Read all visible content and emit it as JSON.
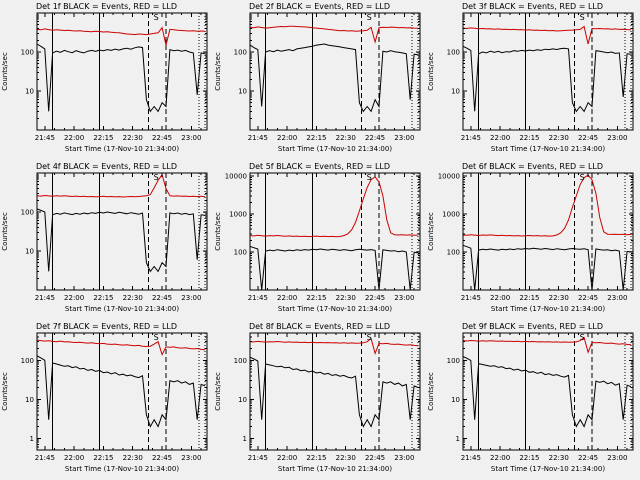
{
  "window": {
    "bg": "#f0f0f0"
  },
  "colors": {
    "events": "#000000",
    "lld": "#cc0000",
    "frame": "#000000",
    "text": "#000000"
  },
  "chart_shared": {
    "type": "line",
    "yscale": "log",
    "xlabel": "Start Time (17-Nov-10 21:34:00)",
    "ylabel": "Counts/sec",
    "legend": {
      "black": "Events",
      "red": "LLD"
    },
    "x_minutes_after_start": {
      "start": 7,
      "step": 2,
      "count": 44
    },
    "xlim": [
      7,
      94
    ],
    "x_ticks": [
      {
        "pos": 11,
        "label": "21:45"
      },
      {
        "pos": 26,
        "label": "22:00"
      },
      {
        "pos": 41,
        "label": "22:15"
      },
      {
        "pos": 56,
        "label": "22:30"
      },
      {
        "pos": 71,
        "label": "22:45"
      },
      {
        "pos": 86,
        "label": "23:00"
      }
    ],
    "x_minor_ticks": [
      16,
      21,
      31,
      36,
      46,
      51,
      61,
      66,
      76,
      81,
      91
    ],
    "markers": {
      "solid_lines": [
        15,
        39
      ],
      "dashed_lines": [
        64,
        73
      ],
      "dotted_lines": [
        90,
        93
      ],
      "annotation": {
        "text": "S",
        "x": 68
      }
    }
  },
  "chart_data": [
    {
      "title": "Det 1f BLACK = Events, RED = LLD",
      "type": "line",
      "ylim": [
        1,
        1000
      ],
      "series": [
        {
          "name": "Events",
          "color": "#000000",
          "values": [
            160,
            140,
            120,
            3,
            95,
            105,
            98,
            110,
            102,
            96,
            108,
            100,
            95,
            105,
            110,
            104,
            112,
            108,
            115,
            110,
            118,
            112,
            120,
            125,
            118,
            128,
            135,
            130,
            6,
            3,
            4,
            3,
            5,
            4,
            115,
            108,
            112,
            105,
            110,
            100,
            95,
            8,
            95,
            90
          ]
        },
        {
          "name": "LLD",
          "color": "#cc0000",
          "values": [
            380,
            370,
            390,
            375,
            360,
            370,
            365,
            355,
            360,
            350,
            345,
            350,
            340,
            335,
            330,
            340,
            335,
            325,
            330,
            320,
            315,
            310,
            300,
            290,
            285,
            280,
            290,
            285,
            280,
            290,
            300,
            310,
            420,
            150,
            380,
            370,
            360,
            355,
            350,
            345,
            350,
            340,
            345,
            340
          ]
        }
      ]
    },
    {
      "title": "Det 2f BLACK = Events, RED = LLD",
      "type": "line",
      "ylim": [
        1,
        1000
      ],
      "series": [
        {
          "name": "Events",
          "color": "#000000",
          "values": [
            150,
            130,
            115,
            4,
            100,
            108,
            102,
            112,
            105,
            110,
            115,
            108,
            120,
            125,
            130,
            135,
            140,
            150,
            155,
            160,
            150,
            145,
            140,
            135,
            130,
            125,
            120,
            115,
            5,
            3,
            4,
            3,
            6,
            4,
            105,
            100,
            108,
            102,
            98,
            95,
            90,
            6,
            88,
            85
          ]
        },
        {
          "name": "LLD",
          "color": "#cc0000",
          "values": [
            430,
            420,
            440,
            425,
            410,
            420,
            430,
            440,
            450,
            445,
            455,
            460,
            450,
            445,
            440,
            430,
            420,
            410,
            400,
            390,
            380,
            370,
            360,
            350,
            355,
            345,
            350,
            340,
            345,
            350,
            360,
            430,
            180,
            420,
            430,
            425,
            435,
            430,
            420,
            425,
            415,
            420,
            410,
            405
          ]
        }
      ]
    },
    {
      "title": "Det 3f BLACK = Events, RED = LLD",
      "type": "line",
      "ylim": [
        1,
        1000
      ],
      "series": [
        {
          "name": "Events",
          "color": "#000000",
          "values": [
            140,
            125,
            110,
            3,
            90,
            100,
            95,
            105,
            98,
            104,
            96,
            102,
            100,
            108,
            104,
            110,
            106,
            112,
            108,
            114,
            110,
            118,
            115,
            120,
            116,
            122,
            125,
            120,
            5,
            3,
            4,
            3,
            5,
            4,
            108,
            104,
            100,
            96,
            100,
            92,
            95,
            7,
            90,
            88
          ]
        },
        {
          "name": "LLD",
          "color": "#cc0000",
          "values": [
            410,
            400,
            415,
            405,
            395,
            400,
            390,
            395,
            385,
            390,
            380,
            385,
            375,
            380,
            370,
            375,
            365,
            370,
            360,
            365,
            355,
            360,
            350,
            355,
            345,
            350,
            355,
            360,
            365,
            370,
            380,
            450,
            160,
            400,
            395,
            400,
            390,
            395,
            385,
            390,
            380,
            385,
            375,
            370
          ]
        }
      ]
    },
    {
      "title": "Det 4f BLACK = Events, RED = LLD",
      "type": "line",
      "ylim": [
        1,
        1000
      ],
      "series": [
        {
          "name": "Events",
          "color": "#000000",
          "values": [
            120,
            110,
            100,
            3,
            85,
            92,
            88,
            95,
            90,
            86,
            92,
            88,
            94,
            90,
            96,
            92,
            98,
            94,
            100,
            96,
            92,
            98,
            94,
            90,
            96,
            92,
            88,
            94,
            5,
            3,
            4,
            3,
            5,
            4,
            95,
            90,
            94,
            88,
            92,
            86,
            90,
            6,
            85,
            82
          ]
        },
        {
          "name": "LLD",
          "color": "#cc0000",
          "values": [
            260,
            255,
            265,
            258,
            252,
            260,
            255,
            262,
            256,
            250,
            255,
            248,
            252,
            246,
            250,
            244,
            248,
            252,
            246,
            250,
            244,
            248,
            242,
            246,
            250,
            245,
            250,
            255,
            260,
            280,
            420,
            650,
            900,
            400,
            260,
            255,
            258,
            252,
            256,
            250,
            254,
            248,
            252,
            246
          ]
        }
      ]
    },
    {
      "title": "Det 5f BLACK = Events, RED = LLD",
      "type": "line",
      "ylim": [
        10,
        12000
      ],
      "series": [
        {
          "name": "Events",
          "color": "#000000",
          "values": [
            140,
            130,
            120,
            4,
            105,
            112,
            108,
            115,
            110,
            106,
            112,
            108,
            114,
            110,
            116,
            112,
            118,
            114,
            120,
            116,
            112,
            118,
            114,
            110,
            116,
            112,
            108,
            114,
            118,
            115,
            112,
            116,
            110,
            6,
            114,
            110,
            106,
            108,
            102,
            106,
            100,
            7,
            98,
            96
          ]
        },
        {
          "name": "LLD",
          "color": "#cc0000",
          "values": [
            270,
            265,
            275,
            268,
            262,
            270,
            265,
            272,
            266,
            260,
            265,
            258,
            262,
            256,
            260,
            254,
            258,
            262,
            256,
            260,
            254,
            258,
            252,
            256,
            270,
            300,
            380,
            600,
            1200,
            2500,
            5000,
            8000,
            9500,
            7000,
            3000,
            700,
            320,
            285,
            280,
            284,
            278,
            282,
            276,
            280
          ]
        }
      ]
    },
    {
      "title": "Det 6f BLACK = Events, RED = LLD",
      "type": "line",
      "ylim": [
        10,
        12000
      ],
      "series": [
        {
          "name": "Events",
          "color": "#000000",
          "values": [
            150,
            138,
            126,
            4,
            112,
            118,
            114,
            120,
            116,
            112,
            118,
            114,
            120,
            116,
            122,
            118,
            124,
            120,
            126,
            122,
            118,
            124,
            120,
            116,
            122,
            118,
            114,
            120,
            124,
            120,
            118,
            122,
            116,
            7,
            120,
            116,
            112,
            114,
            108,
            112,
            106,
            8,
            104,
            100
          ]
        },
        {
          "name": "LLD",
          "color": "#cc0000",
          "values": [
            280,
            275,
            285,
            278,
            272,
            280,
            275,
            282,
            276,
            270,
            275,
            268,
            272,
            266,
            270,
            264,
            268,
            272,
            266,
            270,
            264,
            268,
            262,
            266,
            280,
            320,
            420,
            700,
            1500,
            3000,
            6000,
            9000,
            10500,
            8000,
            3500,
            800,
            340,
            295,
            290,
            294,
            288,
            292,
            286,
            290
          ]
        }
      ]
    },
    {
      "title": "Det 7f BLACK = Events, RED = LLD",
      "type": "line",
      "ylim": [
        0.5,
        500
      ],
      "series": [
        {
          "name": "Events",
          "color": "#000000",
          "values": [
            130,
            115,
            100,
            3,
            85,
            80,
            75,
            70,
            72,
            65,
            68,
            60,
            62,
            55,
            58,
            52,
            55,
            48,
            50,
            45,
            48,
            42,
            44,
            40,
            42,
            38,
            36,
            40,
            4,
            2,
            3,
            2,
            4,
            3,
            30,
            28,
            30,
            26,
            28,
            24,
            26,
            3,
            24,
            22
          ]
        },
        {
          "name": "LLD",
          "color": "#cc0000",
          "values": [
            330,
            320,
            310,
            315,
            305,
            300,
            310,
            295,
            300,
            290,
            285,
            290,
            280,
            275,
            280,
            270,
            265,
            270,
            260,
            255,
            260,
            250,
            245,
            250,
            240,
            235,
            240,
            230,
            225,
            230,
            260,
            300,
            140,
            220,
            215,
            220,
            210,
            205,
            210,
            200,
            195,
            200,
            190,
            185
          ]
        }
      ]
    },
    {
      "title": "Det 8f BLACK = Events, RED = LLD",
      "type": "line",
      "ylim": [
        0.5,
        500
      ],
      "series": [
        {
          "name": "Events",
          "color": "#000000",
          "values": [
            120,
            108,
            96,
            3,
            80,
            76,
            72,
            68,
            70,
            64,
            66,
            58,
            60,
            54,
            56,
            50,
            53,
            47,
            49,
            44,
            46,
            41,
            43,
            39,
            41,
            37,
            35,
            39,
            4,
            2,
            3,
            2,
            4,
            3,
            28,
            26,
            28,
            24,
            26,
            22,
            24,
            3,
            22,
            20
          ]
        },
        {
          "name": "LLD",
          "color": "#cc0000",
          "values": [
            300,
            295,
            305,
            298,
            292,
            300,
            295,
            302,
            296,
            290,
            295,
            288,
            292,
            286,
            290,
            284,
            288,
            282,
            286,
            280,
            284,
            278,
            282,
            276,
            280,
            274,
            278,
            272,
            276,
            280,
            300,
            360,
            150,
            270,
            265,
            270,
            260,
            255,
            260,
            250,
            245,
            250,
            240,
            235
          ]
        }
      ]
    },
    {
      "title": "Det 9f BLACK = Events, RED = LLD",
      "type": "line",
      "ylim": [
        0.5,
        500
      ],
      "series": [
        {
          "name": "Events",
          "color": "#000000",
          "values": [
            125,
            112,
            99,
            3,
            82,
            78,
            74,
            70,
            72,
            66,
            68,
            61,
            63,
            56,
            59,
            53,
            56,
            49,
            51,
            46,
            49,
            43,
            45,
            41,
            43,
            39,
            37,
            41,
            4,
            2,
            3,
            2,
            4,
            3,
            29,
            27,
            29,
            25,
            27,
            23,
            25,
            3,
            23,
            21
          ]
        },
        {
          "name": "LLD",
          "color": "#cc0000",
          "values": [
            320,
            312,
            322,
            315,
            308,
            316,
            310,
            318,
            312,
            306,
            312,
            304,
            308,
            302,
            306,
            300,
            304,
            298,
            302,
            296,
            300,
            294,
            298,
            292,
            296,
            290,
            294,
            288,
            292,
            296,
            320,
            380,
            160,
            285,
            280,
            285,
            275,
            270,
            275,
            265,
            260,
            265,
            255,
            250
          ]
        }
      ]
    }
  ]
}
